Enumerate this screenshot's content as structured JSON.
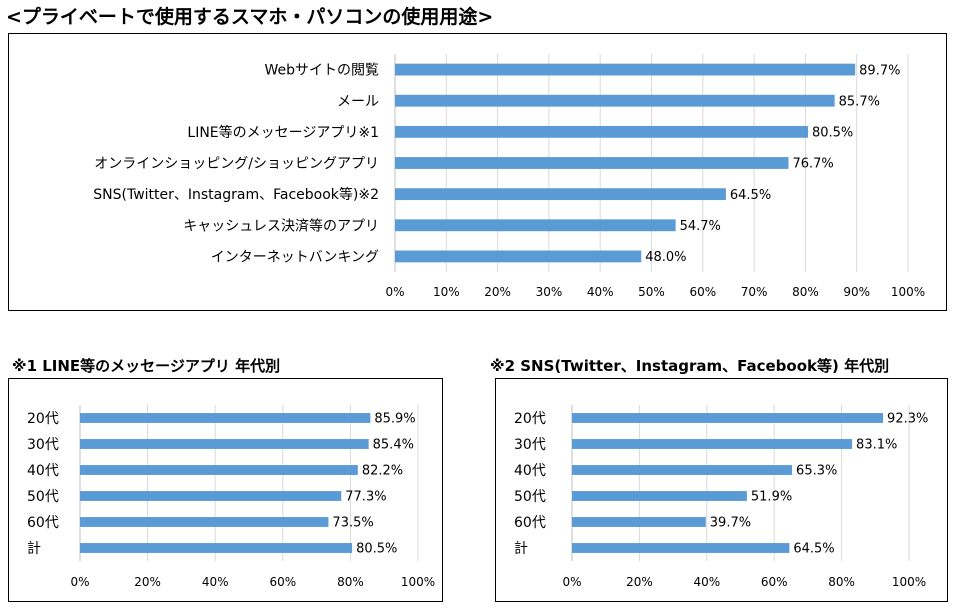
{
  "page": {
    "title": "<プライベートで使用するスマホ・パソコンの使用用途>",
    "bar_color": "#5B9BD5",
    "grid_color": "#D9D9D9"
  },
  "chart_data": [
    {
      "type": "bar",
      "orientation": "horizontal",
      "title": "<プライベートで使用するスマホ・パソコンの使用用途>",
      "categories": [
        "Webサイトの閲覧",
        "メール",
        "LINE等のメッセージアプリ※1",
        "オンラインショッピング/ショッピングアプリ",
        "SNS(Twitter、Instagram、Facebook等)※2",
        "キャッシュレス決済等のアプリ",
        "インターネットバンキング"
      ],
      "values": [
        89.7,
        85.7,
        80.5,
        76.7,
        64.5,
        54.7,
        48.0
      ],
      "value_labels": [
        "89.7%",
        "85.7%",
        "80.5%",
        "76.7%",
        "64.5%",
        "54.7%",
        "48.0%"
      ],
      "xlim": [
        0,
        100
      ],
      "ticks": [
        "0%",
        "10%",
        "20%",
        "30%",
        "40%",
        "50%",
        "60%",
        "70%",
        "80%",
        "90%",
        "100%"
      ],
      "grid": true,
      "xlabel": "",
      "ylabel": ""
    },
    {
      "type": "bar",
      "orientation": "horizontal",
      "title": "※1 LINE等のメッセージアプリ 年代別",
      "categories": [
        "20代",
        "30代",
        "40代",
        "50代",
        "60代",
        "計"
      ],
      "values": [
        85.9,
        85.4,
        82.2,
        77.3,
        73.5,
        80.5
      ],
      "value_labels": [
        "85.9%",
        "85.4%",
        "82.2%",
        "77.3%",
        "73.5%",
        "80.5%"
      ],
      "xlim": [
        0,
        100
      ],
      "ticks": [
        "0%",
        "20%",
        "40%",
        "60%",
        "80%",
        "100%"
      ],
      "grid": true,
      "xlabel": "",
      "ylabel": ""
    },
    {
      "type": "bar",
      "orientation": "horizontal",
      "title": "※2 SNS(Twitter、Instagram、Facebook等) 年代別",
      "categories": [
        "20代",
        "30代",
        "40代",
        "50代",
        "60代",
        "計"
      ],
      "values": [
        92.3,
        83.1,
        65.3,
        51.9,
        39.7,
        64.5
      ],
      "value_labels": [
        "92.3%",
        "83.1%",
        "65.3%",
        "51.9%",
        "39.7%",
        "64.5%"
      ],
      "xlim": [
        0,
        100
      ],
      "ticks": [
        "0%",
        "20%",
        "40%",
        "60%",
        "80%",
        "100%"
      ],
      "grid": true,
      "xlabel": "",
      "ylabel": ""
    }
  ]
}
